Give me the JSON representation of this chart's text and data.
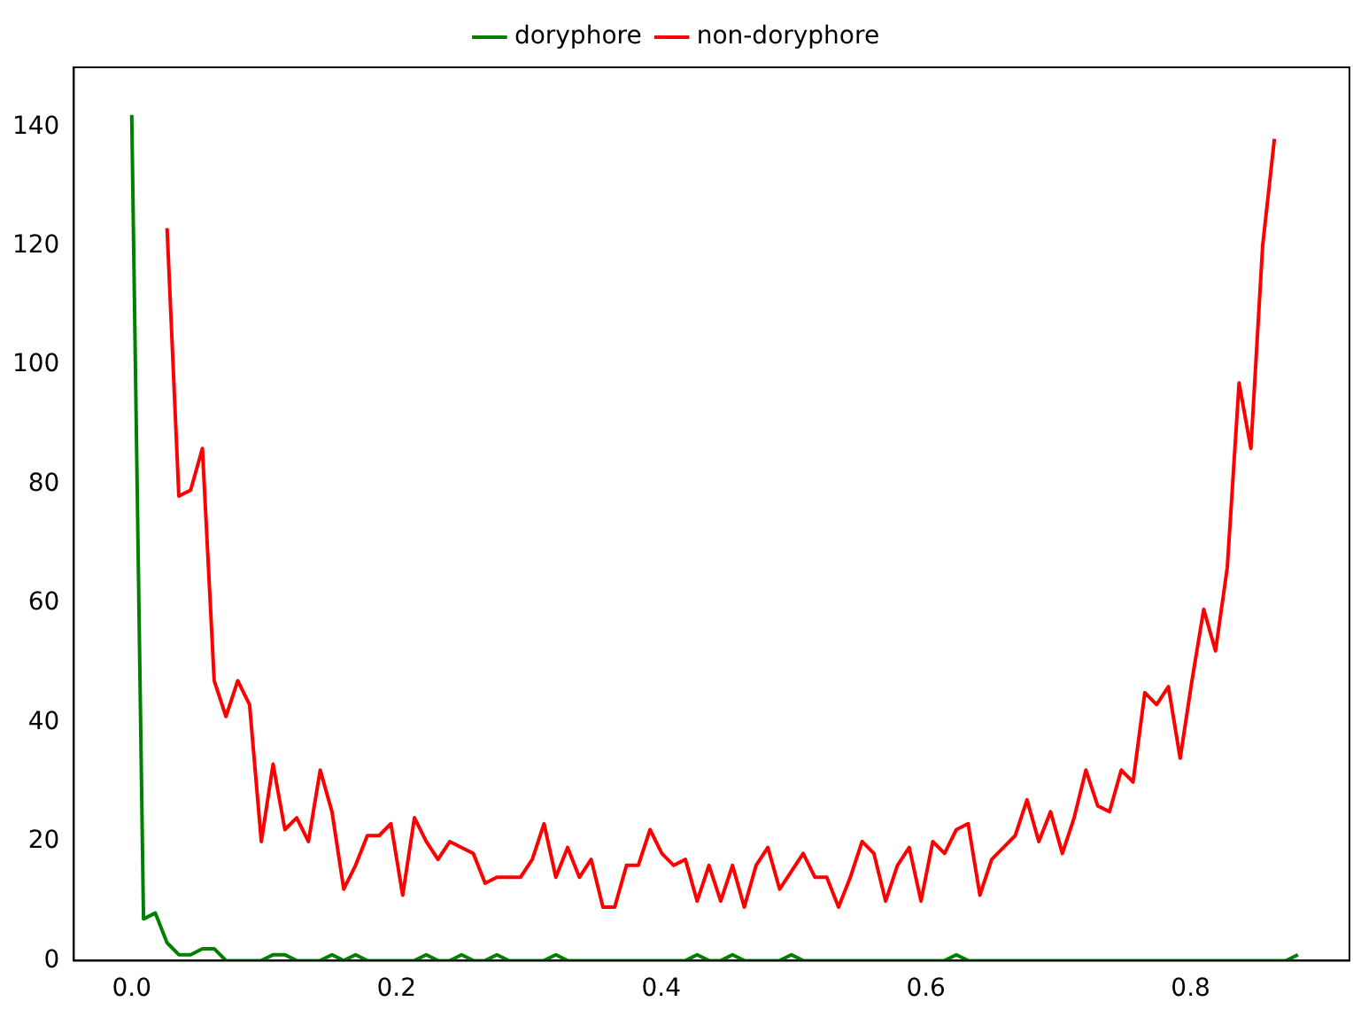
{
  "chart_data": {
    "type": "line",
    "x": [
      0,
      0.0089,
      0.0178,
      0.0267,
      0.0356,
      0.0445,
      0.0534,
      0.0623,
      0.0712,
      0.0801,
      0.089,
      0.0979,
      0.1068,
      0.1157,
      0.1246,
      0.1335,
      0.1424,
      0.1513,
      0.1602,
      0.1691,
      0.178,
      0.1869,
      0.1958,
      0.2047,
      0.2136,
      0.2225,
      0.2314,
      0.2403,
      0.2492,
      0.2581,
      0.267,
      0.2759,
      0.2848,
      0.2937,
      0.3026,
      0.3115,
      0.3204,
      0.3293,
      0.3382,
      0.3471,
      0.356,
      0.3649,
      0.3738,
      0.3827,
      0.3916,
      0.4005,
      0.4094,
      0.4183,
      0.4272,
      0.4361,
      0.445,
      0.4539,
      0.4628,
      0.4717,
      0.4806,
      0.4895,
      0.4984,
      0.5073,
      0.5162,
      0.5251,
      0.534,
      0.5429,
      0.5518,
      0.5607,
      0.5696,
      0.5785,
      0.5874,
      0.5963,
      0.6052,
      0.6141,
      0.623,
      0.6319,
      0.6408,
      0.6497,
      0.6586,
      0.6675,
      0.6764,
      0.6853,
      0.6942,
      0.7031,
      0.712,
      0.7209,
      0.7298,
      0.7387,
      0.7476,
      0.7565,
      0.7654,
      0.7743,
      0.7832,
      0.7921,
      0.801,
      0.8099,
      0.8188,
      0.8277,
      0.8366,
      0.8455,
      0.8544,
      0.8633,
      0.8722,
      0.8811
    ],
    "series": [
      {
        "name": "doryphore",
        "color": "#008000",
        "values": [
          142,
          7,
          8,
          3,
          1,
          1,
          2,
          2,
          0,
          0,
          0,
          0,
          1,
          1,
          0,
          0,
          0,
          1,
          0,
          1,
          0,
          0,
          0,
          0,
          0,
          1,
          0,
          0,
          1,
          0,
          0,
          1,
          0,
          0,
          0,
          0,
          1,
          0,
          0,
          0,
          0,
          0,
          0,
          0,
          0,
          0,
          0,
          0,
          1,
          0,
          0,
          1,
          0,
          0,
          0,
          0,
          1,
          0,
          0,
          0,
          0,
          0,
          0,
          0,
          0,
          0,
          0,
          0,
          0,
          0,
          1,
          0,
          0,
          0,
          0,
          0,
          0,
          0,
          0,
          0,
          0,
          0,
          0,
          0,
          0,
          0,
          0,
          0,
          0,
          0,
          0,
          0,
          0,
          0,
          0,
          0,
          0,
          0,
          0,
          1
        ]
      },
      {
        "name": "non-doryphore",
        "color": "#ff0000",
        "values": [
          null,
          null,
          null,
          123,
          78,
          79,
          86,
          47,
          41,
          47,
          43,
          20,
          33,
          22,
          24,
          20,
          32,
          25,
          12,
          16,
          21,
          21,
          23,
          11,
          24,
          20,
          17,
          20,
          19,
          18,
          13,
          14,
          14,
          14,
          17,
          23,
          14,
          19,
          14,
          17,
          9,
          9,
          16,
          16,
          22,
          18,
          16,
          17,
          10,
          16,
          10,
          16,
          9,
          16,
          19,
          12,
          15,
          18,
          14,
          14,
          9,
          14,
          20,
          18,
          10,
          16,
          19,
          10,
          20,
          18,
          22,
          23,
          11,
          17,
          19,
          21,
          27,
          20,
          25,
          18,
          24,
          32,
          26,
          25,
          32,
          30,
          45,
          43,
          46,
          34,
          47,
          59,
          52,
          66,
          97,
          86,
          120,
          138,
          null,
          null
        ]
      }
    ],
    "xlim": [
      -0.0437,
      0.92
    ],
    "ylim": [
      0,
      150
    ],
    "xticks": [
      {
        "value": 0,
        "label": "0.0"
      },
      {
        "value": 0.2,
        "label": "0.2"
      },
      {
        "value": 0.4,
        "label": "0.4"
      },
      {
        "value": 0.6,
        "label": "0.6"
      },
      {
        "value": 0.8,
        "label": "0.8"
      }
    ],
    "yticks": [
      0,
      20,
      40,
      60,
      80,
      100,
      120,
      140
    ],
    "legend": "top",
    "grid": false,
    "marker": "none",
    "line_style": "solid"
  }
}
